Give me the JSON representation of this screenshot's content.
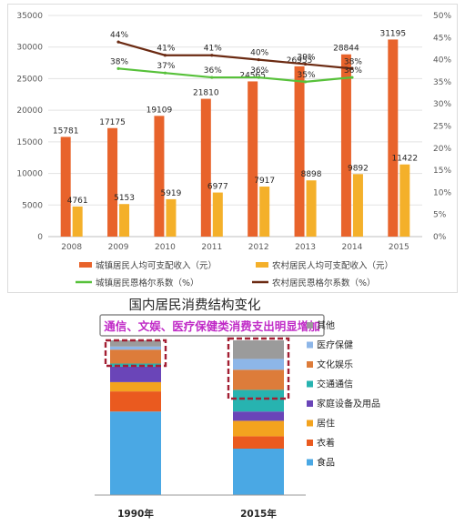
{
  "chart_data": [
    {
      "type": "bar",
      "categories": [
        "2008",
        "2009",
        "2010",
        "2011",
        "2012",
        "2013",
        "2014",
        "2015"
      ],
      "series": [
        {
          "name": "城镇居民人均可支配收入（元）",
          "kind": "bar",
          "axis": "left",
          "color": "#e8632b",
          "values": [
            15781,
            17175,
            19109,
            21810,
            24565,
            26955,
            28844,
            31195
          ],
          "labels": [
            "15781",
            "17175",
            "19109",
            "21810",
            "24565",
            "26955",
            "28844",
            "31195"
          ]
        },
        {
          "name": "农村居民人均可支配收入（元）",
          "kind": "bar",
          "axis": "left",
          "color": "#f4b02a",
          "values": [
            4761,
            5153,
            5919,
            6977,
            7917,
            8898,
            9892,
            11422
          ],
          "labels": [
            "4761",
            "5153",
            "5919",
            "6977",
            "7917",
            "8898",
            "9892",
            "11422"
          ]
        },
        {
          "name": "城镇居民恩格尔系数（%）",
          "kind": "line",
          "axis": "right",
          "color": "#57c13a",
          "values": [
            null,
            38,
            37,
            36,
            36,
            35,
            36,
            null
          ],
          "labels": [
            null,
            "38%",
            "37%",
            "36%",
            "36%",
            "35%",
            "36%",
            null
          ]
        },
        {
          "name": "农村居民恩格尔系数（%）",
          "kind": "line",
          "axis": "right",
          "color": "#6b2a12",
          "values": [
            null,
            44,
            41,
            41,
            40,
            39,
            38,
            null
          ],
          "labels": [
            null,
            "44%",
            "41%",
            "41%",
            "40%",
            "39%",
            "38%",
            null
          ]
        }
      ],
      "y_left": {
        "min": 0,
        "max": 35000,
        "ticks": [
          "0",
          "5000",
          "10000",
          "15000",
          "20000",
          "25000",
          "30000",
          "35000"
        ]
      },
      "y_right": {
        "min": 0,
        "max": 50,
        "ticks": [
          "0%",
          "5%",
          "10%",
          "15%",
          "20%",
          "25%",
          "30%",
          "35%",
          "40%",
          "45%",
          "50%"
        ]
      },
      "grid": true,
      "legend": "bottom"
    },
    {
      "type": "bar",
      "stacked": true,
      "title": "国内居民消费结构变化",
      "callout": "通信、文娱、医疗保健类消费支出明显增加",
      "categories": [
        "1990年",
        "2015年"
      ],
      "series_note": "stack order bottom to top: 食品, 衣着, 居住, 家庭设备及用品, 交通通信, 文化娱乐, 医疗保健, 其他",
      "series": [
        {
          "name": "食品",
          "color": "#4aa8e4",
          "values": [
            54,
            30
          ]
        },
        {
          "name": "衣着",
          "color": "#ea5a1f",
          "values": [
            13,
            8
          ]
        },
        {
          "name": "居住",
          "color": "#f3a31f",
          "values": [
            6,
            10
          ]
        },
        {
          "name": "家庭设备及用品",
          "color": "#6a45b8",
          "values": [
            10,
            6
          ]
        },
        {
          "name": "交通通信",
          "color": "#27b3b0",
          "values": [
            2,
            14
          ]
        },
        {
          "name": "文化娱乐",
          "color": "#dd7c3a",
          "values": [
            9,
            13
          ]
        },
        {
          "name": "医疗保健",
          "color": "#8db6e8",
          "values": [
            2,
            7
          ]
        },
        {
          "name": "其他",
          "color": "#9b9b9b",
          "values": [
            4,
            12
          ]
        }
      ]
    }
  ],
  "colors": {
    "callout_text": "#c02ac7",
    "dashed_box": "#a31f33"
  }
}
